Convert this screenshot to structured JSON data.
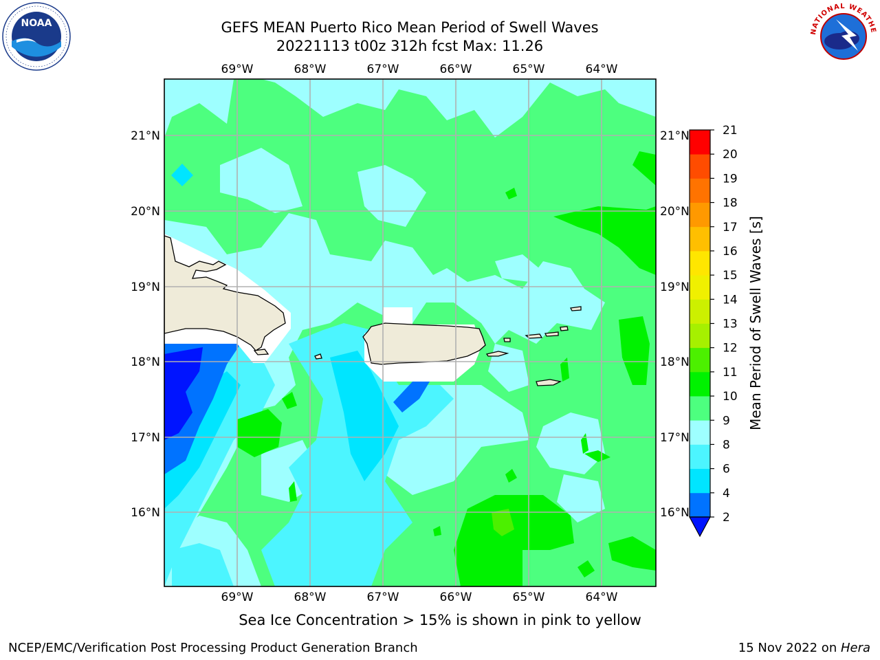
{
  "header": {
    "title_line1": "GEFS MEAN Puerto Rico Mean Period of Swell Waves",
    "title_line2": "20221113 t00z 312h fcst   Max: 11.26"
  },
  "logos": {
    "noaa_text": "NOAA",
    "nws_text": "NATIONAL WEATHER SERVICE"
  },
  "map": {
    "lon_labels": [
      "69°W",
      "68°W",
      "67°W",
      "66°W",
      "65°W",
      "64°W"
    ],
    "lat_labels": [
      "21°N",
      "20°N",
      "19°N",
      "18°N",
      "17°N",
      "16°N"
    ],
    "lon_range": [
      -70.0,
      -63.25
    ],
    "lat_range": [
      15.0,
      21.75
    ],
    "colors": {
      "land": "#efebd9",
      "grid": "#b0b0b0",
      "missing_near_coast": "#ffffff"
    }
  },
  "colorbar": {
    "label": "Mean Period of Swell Waves [s]",
    "tick_labels": [
      "2",
      "4",
      "6",
      "8",
      "9",
      "10",
      "11",
      "12",
      "13",
      "14",
      "15",
      "16",
      "17",
      "18",
      "19",
      "20",
      "21"
    ],
    "under_color": "#0014ff",
    "bins": [
      {
        "from": 2,
        "to": 4,
        "color": "#0073ff"
      },
      {
        "from": 4,
        "to": 6,
        "color": "#00e5ff"
      },
      {
        "from": 6,
        "to": 8,
        "color": "#4cf5ff"
      },
      {
        "from": 8,
        "to": 9,
        "color": "#9effff"
      },
      {
        "from": 9,
        "to": 10,
        "color": "#4dff7f"
      },
      {
        "from": 10,
        "to": 11,
        "color": "#00f200"
      },
      {
        "from": 11,
        "to": 12,
        "color": "#4cf000"
      },
      {
        "from": 12,
        "to": 13,
        "color": "#a6f000"
      },
      {
        "from": 13,
        "to": 14,
        "color": "#ccf000"
      },
      {
        "from": 14,
        "to": 15,
        "color": "#f0f000"
      },
      {
        "from": 15,
        "to": 16,
        "color": "#ffe600"
      },
      {
        "from": 16,
        "to": 17,
        "color": "#ffbf00"
      },
      {
        "from": 17,
        "to": 18,
        "color": "#ff9900"
      },
      {
        "from": 18,
        "to": 19,
        "color": "#ff7300"
      },
      {
        "from": 19,
        "to": 20,
        "color": "#ff4c00"
      },
      {
        "from": 20,
        "to": 21,
        "color": "#ff0000"
      }
    ]
  },
  "sea_ice_note": "Sea Ice Concentration > 15% is shown in pink to yellow",
  "footer": {
    "left": "NCEP/EMC/Verification Post Processing Product Generation Branch",
    "right_prefix": "15 Nov 2022 on ",
    "right_host": "Hera"
  }
}
